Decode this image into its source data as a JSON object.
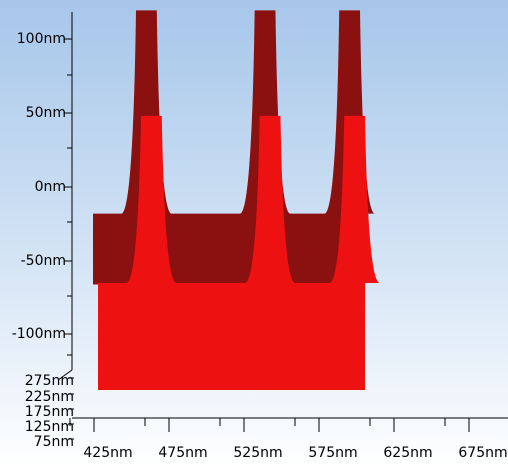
{
  "chart_data": {
    "type": "area",
    "title": "",
    "colors": {
      "background_top": "#a9c8ec",
      "background_bottom": "#ffffff",
      "front_face": "#ee1111",
      "side_face": "#8b1010",
      "axis": "#000000"
    },
    "x_axis": {
      "unit": "nm",
      "range": [
        400,
        700
      ],
      "ticks": [
        425,
        475,
        525,
        575,
        625,
        675
      ],
      "tick_labels": [
        "425nm",
        "475nm",
        "525nm",
        "575nm",
        "625nm",
        "675nm"
      ]
    },
    "z_axis": {
      "unit": "nm",
      "range": [
        -150,
        110
      ],
      "ticks": [
        100,
        50,
        0,
        -50,
        -100
      ],
      "tick_labels": [
        "100nm",
        "50nm",
        "0nm",
        "-50nm",
        "-100nm"
      ]
    },
    "depth_axis": {
      "unit": "nm",
      "ticks": [
        275,
        225,
        175,
        125,
        75
      ],
      "tick_labels": [
        "275nm",
        "225nm",
        "175nm",
        "125nm",
        "75nm"
      ]
    },
    "profile": {
      "x": [
        430,
        445,
        462,
        470,
        478,
        490,
        505,
        520,
        538,
        546,
        554,
        566,
        575,
        590,
        610
      ],
      "z": [
        -65,
        -55,
        60,
        60,
        60,
        -55,
        -65,
        -55,
        60,
        60,
        60,
        -65,
        -55,
        60,
        60
      ],
      "note": ""
    },
    "series": [
      {
        "name": "",
        "x_start": 430,
        "x_end": 610,
        "base_z": -145,
        "plateau_z": -65,
        "peaks": [
          {
            "x_center": 466,
            "top_z": 60
          },
          {
            "x_center": 546,
            "top_z": 60
          },
          {
            "x_center": 603,
            "top_z": 60
          }
        ],
        "back_peaks_top_z": 100
      }
    ]
  }
}
